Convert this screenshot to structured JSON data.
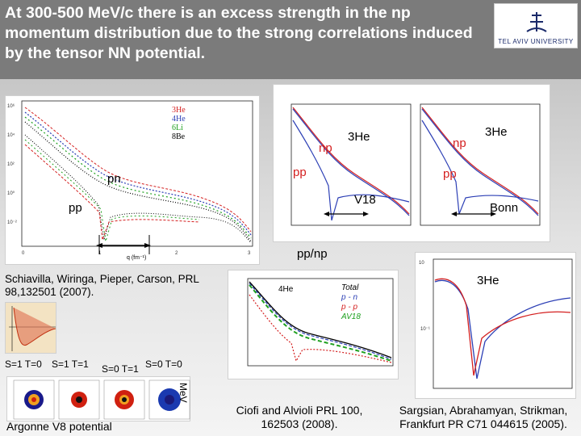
{
  "slide": {
    "title": "At 300-500 MeV/c there is an excess strength in the np momentum distribution due to the strong correlations induced by the  tensor NN potential.",
    "logo_text": "TEL AVIV UNIVERSITY"
  },
  "left_plot": {
    "legend": [
      "3He",
      "4He",
      "6Li",
      "8Be"
    ],
    "labels": {
      "pn": "pn",
      "pp": "pp"
    },
    "xlabel": "q (fm⁻¹)"
  },
  "center_plots": {
    "left": {
      "np": "np",
      "pp": "pp",
      "nucleus": "3He",
      "potential": "V18"
    },
    "right": {
      "np": "np",
      "pp": "pp",
      "nucleus": "3He",
      "potential": "Bonn"
    }
  },
  "ratio_plot": {
    "title": "pp/np",
    "nucleus": "3He"
  },
  "ciofi_plot": {
    "nucleus": "4He",
    "legend": [
      "Total",
      "p - n",
      "p - p",
      "AV18"
    ]
  },
  "tensor_panel": {
    "labels": [
      "S=1 T=0",
      "S=1 T=1",
      "S=0 T=1",
      "S=0 T=0"
    ],
    "unit": "MeV"
  },
  "citations": {
    "schiavilla": "Schiavilla, Wiringa, Pieper, Carson, PRL 98,132501 (2007).",
    "argonne": "Argonne V8 potential",
    "ciofi": "Ciofi and Alvioli PRL 100, 162503 (2008).",
    "sargsian": "Sargsian, Abrahamyan, Strikman, Frankfurt PR C71 044615 (2005)."
  },
  "colors": {
    "header_bg": "#7b7b7b",
    "np_blue": "#2c3fb5",
    "red": "#d42020",
    "green": "#20a020"
  }
}
